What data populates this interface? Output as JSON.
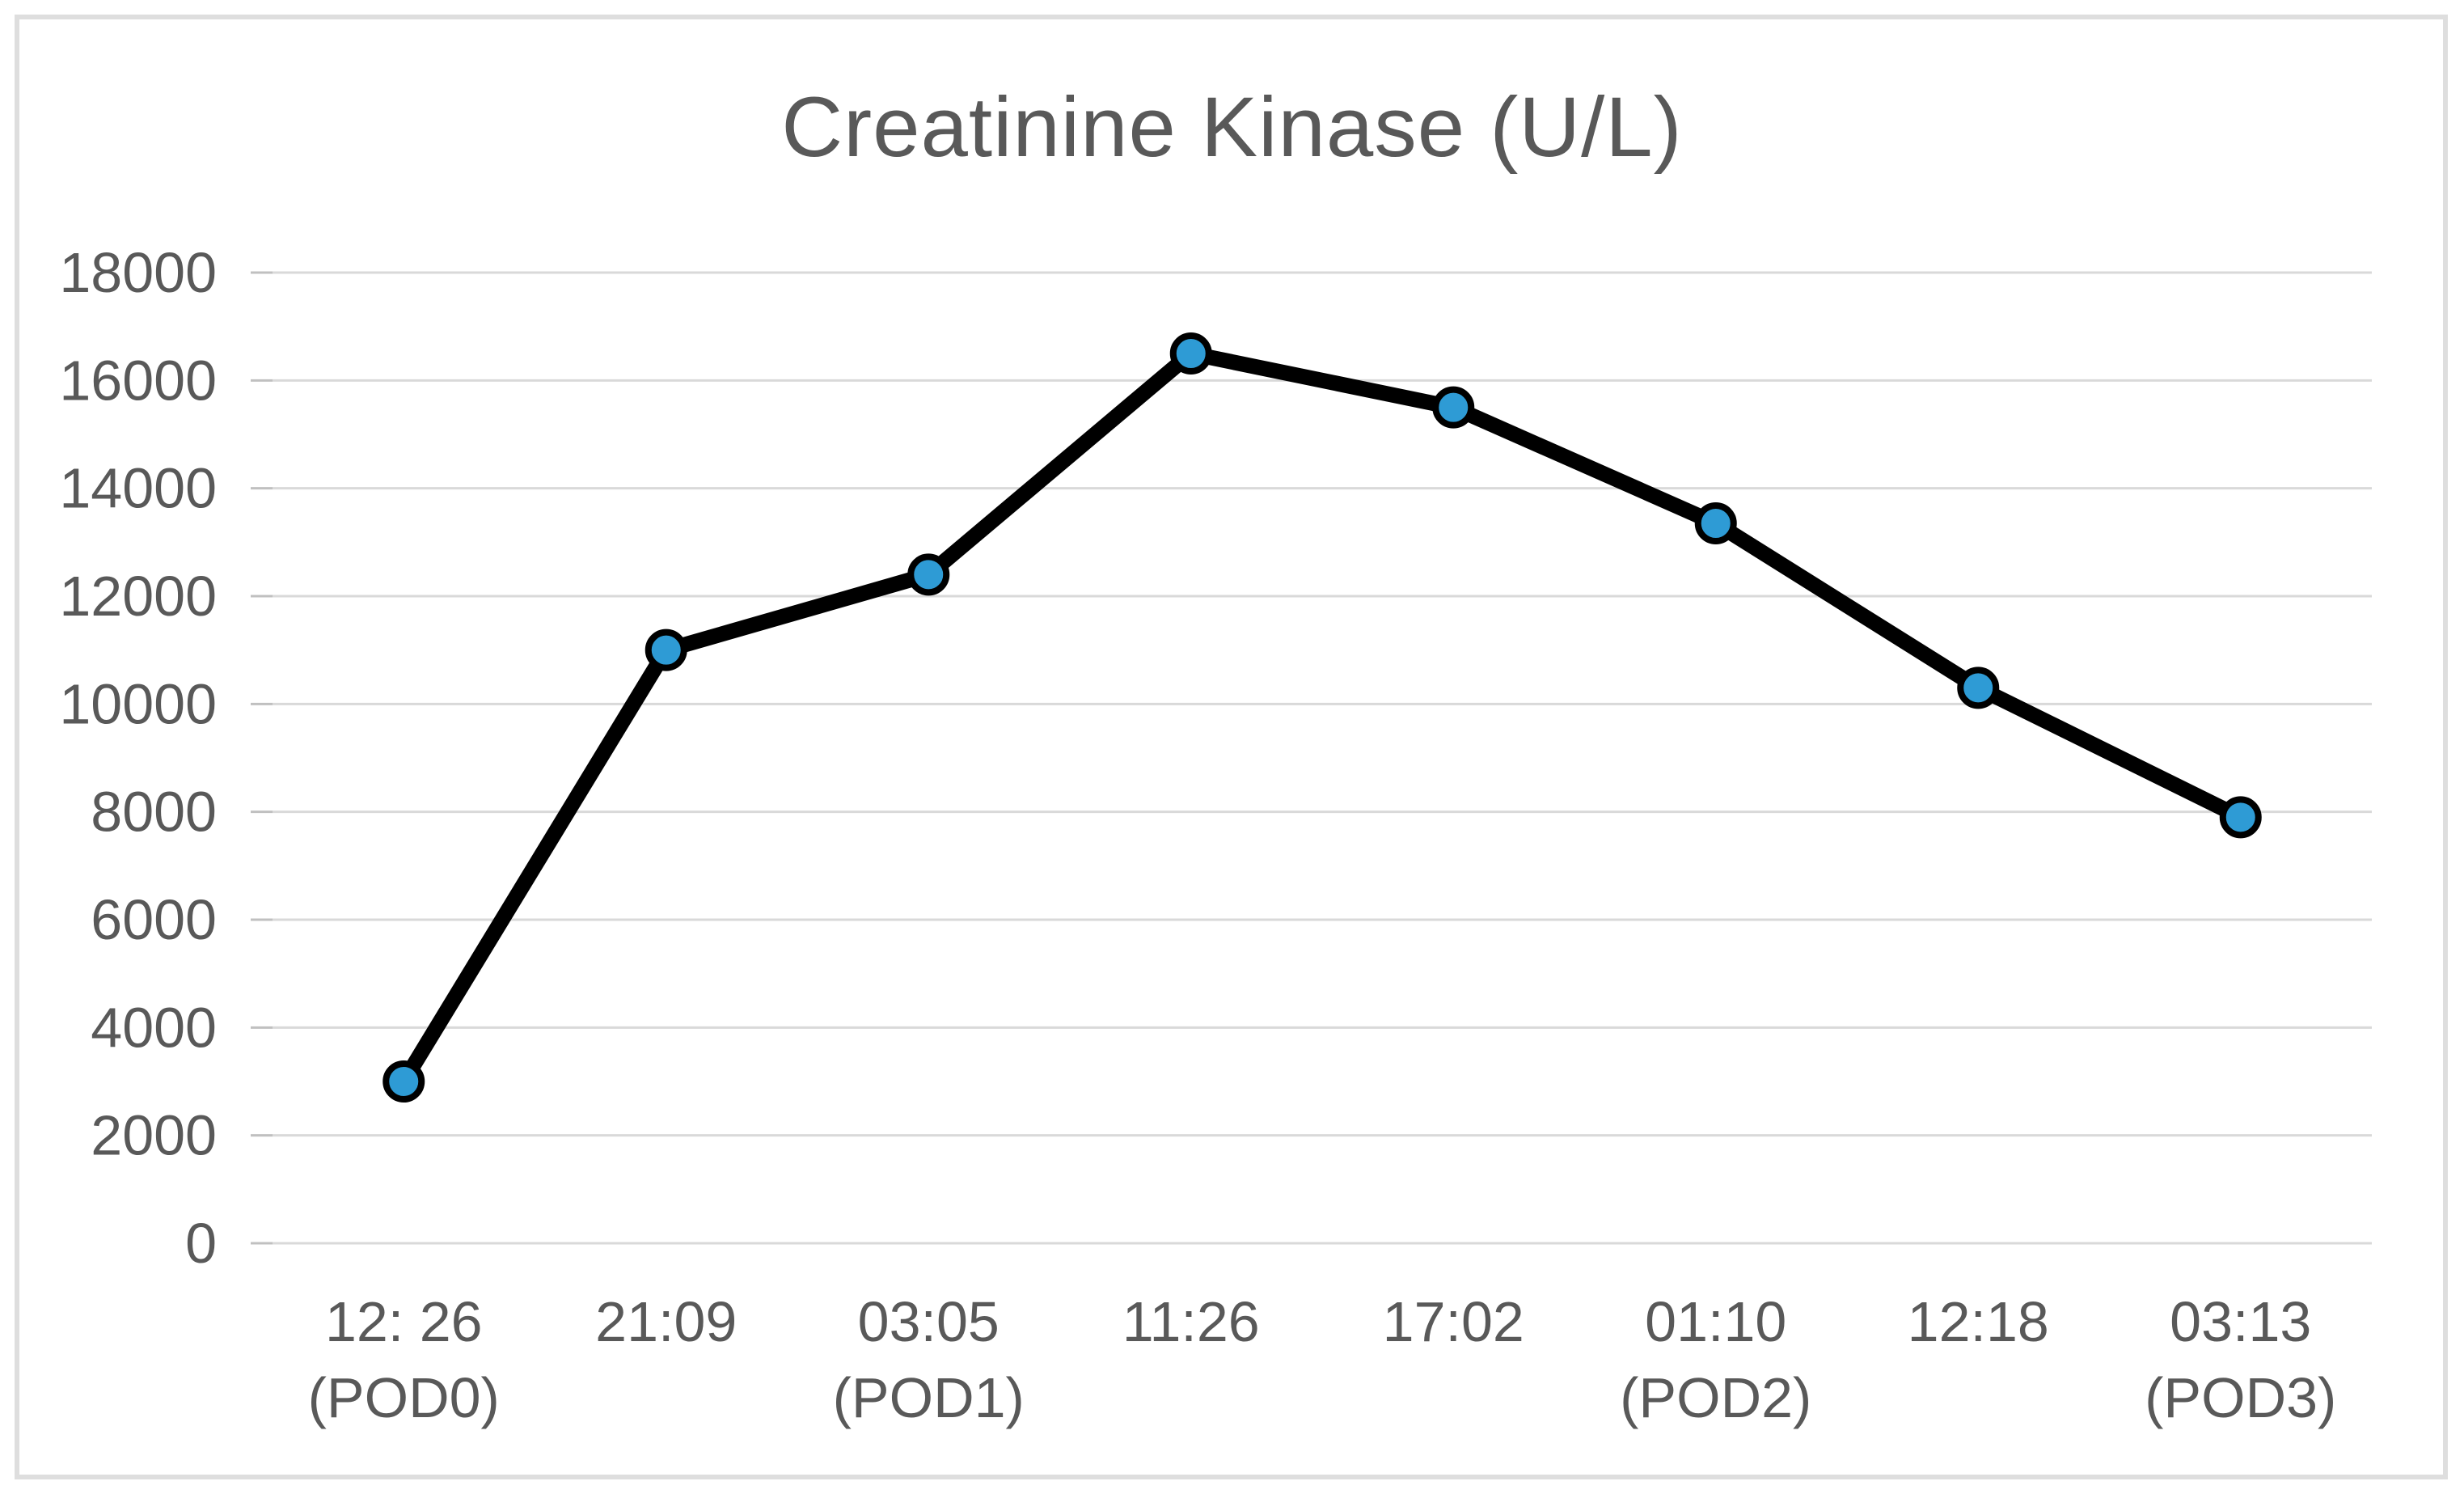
{
  "chart_data": {
    "type": "line",
    "title": "Creatinine Kinase (U/L)",
    "x_tick_labels": [
      {
        "line1": "12: 26",
        "line2": "(POD0)"
      },
      {
        "line1": "21:09",
        "line2": ""
      },
      {
        "line1": "03:05",
        "line2": "(POD1)"
      },
      {
        "line1": "11:26",
        "line2": ""
      },
      {
        "line1": "17:02",
        "line2": ""
      },
      {
        "line1": "01:10",
        "line2": "(POD2)"
      },
      {
        "line1": "12:18",
        "line2": ""
      },
      {
        "line1": "03:13",
        "line2": "(POD3)"
      }
    ],
    "values": [
      3000,
      11000,
      12400,
      16500,
      15500,
      13350,
      10300,
      7900
    ],
    "y_ticks": [
      0,
      2000,
      4000,
      6000,
      8000,
      10000,
      12000,
      14000,
      16000,
      18000
    ],
    "ylim": [
      0,
      18000
    ],
    "grid": true,
    "legend": "none",
    "line_color": "#000000",
    "marker_color": "#2E9BD5",
    "gridline_color": "#d9d9d9",
    "label_color": "#595959"
  }
}
